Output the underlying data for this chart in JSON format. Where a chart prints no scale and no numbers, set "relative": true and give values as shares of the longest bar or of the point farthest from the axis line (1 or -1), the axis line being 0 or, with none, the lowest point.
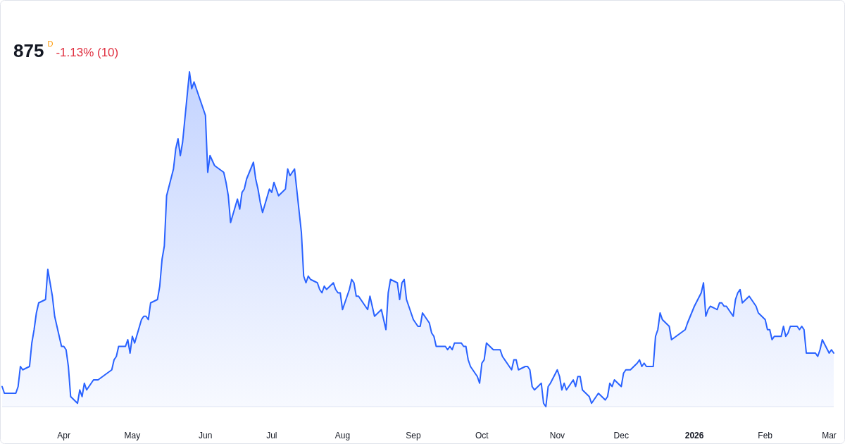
{
  "chart_data": {
    "type": "area",
    "title": "875",
    "subtitle": "-1.13% (10)",
    "annotations": [
      "D"
    ],
    "relative": true,
    "tick_labels": "x",
    "xlim": [
      "2025-03-05",
      "2026-03-04"
    ],
    "xticks": [
      {
        "value": "2025-04-01",
        "label": "Apr"
      },
      {
        "value": "2025-05-01",
        "label": "May"
      },
      {
        "value": "2025-06-02",
        "label": "Jun"
      },
      {
        "value": "2025-07-01",
        "label": "Jul"
      },
      {
        "value": "2025-08-01",
        "label": "Aug"
      },
      {
        "value": "2025-09-01",
        "label": "Sep"
      },
      {
        "value": "2025-10-01",
        "label": "Oct"
      },
      {
        "value": "2025-11-03",
        "label": "Nov"
      },
      {
        "value": "2025-12-01",
        "label": "Dec"
      },
      {
        "value": "2026-01-02",
        "label": "2026"
      },
      {
        "value": "2026-02-02",
        "label": "Feb"
      },
      {
        "value": "2026-03-02",
        "label": "Mar"
      }
    ],
    "x": [
      "2025-03-05",
      "2025-03-06",
      "2025-03-07",
      "2025-03-10",
      "2025-03-11",
      "2025-03-12",
      "2025-03-13",
      "2025-03-14",
      "2025-03-17",
      "2025-03-18",
      "2025-03-19",
      "2025-03-20",
      "2025-03-21",
      "2025-03-24",
      "2025-03-25",
      "2025-03-26",
      "2025-03-27",
      "2025-03-28",
      "2025-03-31",
      "2025-04-01",
      "2025-04-02",
      "2025-04-03",
      "2025-04-04",
      "2025-04-07",
      "2025-04-08",
      "2025-04-09",
      "2025-04-10",
      "2025-04-11",
      "2025-04-14",
      "2025-04-15",
      "2025-04-16",
      "2025-04-22",
      "2025-04-23",
      "2025-04-24",
      "2025-04-25",
      "2025-04-28",
      "2025-04-29",
      "2025-04-30",
      "2025-05-01",
      "2025-05-02",
      "2025-05-05",
      "2025-05-06",
      "2025-05-07",
      "2025-05-08",
      "2025-05-09",
      "2025-05-12",
      "2025-05-13",
      "2025-05-14",
      "2025-05-15",
      "2025-05-16",
      "2025-05-19",
      "2025-05-20",
      "2025-05-21",
      "2025-05-22",
      "2025-05-23",
      "2025-05-26",
      "2025-05-27",
      "2025-05-28",
      "2025-06-02",
      "2025-06-03",
      "2025-06-04",
      "2025-06-06",
      "2025-06-10",
      "2025-06-11",
      "2025-06-12",
      "2025-06-13",
      "2025-06-16",
      "2025-06-17",
      "2025-06-18",
      "2025-06-19",
      "2025-06-20",
      "2025-06-23",
      "2025-06-24",
      "2025-06-25",
      "2025-06-26",
      "2025-06-27",
      "2025-06-30",
      "2025-07-01",
      "2025-07-02",
      "2025-07-03",
      "2025-07-04",
      "2025-07-07",
      "2025-07-08",
      "2025-07-09",
      "2025-07-10",
      "2025-07-11",
      "2025-07-14",
      "2025-07-15",
      "2025-07-16",
      "2025-07-17",
      "2025-07-18",
      "2025-07-21",
      "2025-07-22",
      "2025-07-23",
      "2025-07-24",
      "2025-07-25",
      "2025-07-28",
      "2025-07-29",
      "2025-07-30",
      "2025-07-31",
      "2025-08-01",
      "2025-08-04",
      "2025-08-05",
      "2025-08-06",
      "2025-08-07",
      "2025-08-08",
      "2025-08-11",
      "2025-08-12",
      "2025-08-13",
      "2025-08-14",
      "2025-08-15",
      "2025-08-18",
      "2025-08-19",
      "2025-08-20",
      "2025-08-21",
      "2025-08-22",
      "2025-08-25",
      "2025-08-26",
      "2025-08-27",
      "2025-08-28",
      "2025-08-29",
      "2025-09-01",
      "2025-09-02",
      "2025-09-03",
      "2025-09-04",
      "2025-09-05",
      "2025-09-08",
      "2025-09-09",
      "2025-09-10",
      "2025-09-11",
      "2025-09-12",
      "2025-09-15",
      "2025-09-16",
      "2025-09-17",
      "2025-09-18",
      "2025-09-19",
      "2025-09-22",
      "2025-09-23",
      "2025-09-24",
      "2025-09-25",
      "2025-09-26",
      "2025-09-29",
      "2025-09-30",
      "2025-10-01",
      "2025-10-02",
      "2025-10-03",
      "2025-10-06",
      "2025-10-07",
      "2025-10-08",
      "2025-10-09",
      "2025-10-10",
      "2025-10-13",
      "2025-10-14",
      "2025-10-15",
      "2025-10-16",
      "2025-10-17",
      "2025-10-20",
      "2025-10-21",
      "2025-10-22",
      "2025-10-23",
      "2025-10-24",
      "2025-10-27",
      "2025-10-28",
      "2025-10-29",
      "2025-10-30",
      "2025-10-31",
      "2025-11-03",
      "2025-11-04",
      "2025-11-05",
      "2025-11-06",
      "2025-11-07",
      "2025-11-10",
      "2025-11-11",
      "2025-11-12",
      "2025-11-13",
      "2025-11-14",
      "2025-11-17",
      "2025-11-18",
      "2025-11-19",
      "2025-11-20",
      "2025-11-21",
      "2025-11-24",
      "2025-11-25",
      "2025-11-26",
      "2025-11-27",
      "2025-11-28",
      "2025-12-01",
      "2025-12-02",
      "2025-12-03",
      "2025-12-04",
      "2025-12-05",
      "2025-12-08",
      "2025-12-09",
      "2025-12-10",
      "2025-12-11",
      "2025-12-12",
      "2025-12-15",
      "2025-12-16",
      "2025-12-17",
      "2025-12-18",
      "2025-12-19",
      "2025-12-22",
      "2025-12-23",
      "2025-12-29",
      "2025-12-30",
      "2026-01-02",
      "2026-01-05",
      "2026-01-06",
      "2026-01-07",
      "2026-01-08",
      "2026-01-09",
      "2026-01-12",
      "2026-01-13",
      "2026-01-14",
      "2026-01-15",
      "2026-01-16",
      "2026-01-19",
      "2026-01-20",
      "2026-01-21",
      "2026-01-22",
      "2026-01-23",
      "2026-01-26",
      "2026-01-27",
      "2026-01-28",
      "2026-01-29",
      "2026-01-30",
      "2026-02-02",
      "2026-02-03",
      "2026-02-04",
      "2026-02-05",
      "2026-02-06",
      "2026-02-09",
      "2026-02-10",
      "2026-02-11",
      "2026-02-12",
      "2026-02-13",
      "2026-02-16",
      "2026-02-17",
      "2026-02-18",
      "2026-02-19",
      "2026-02-20",
      "2026-02-23",
      "2026-02-24",
      "2026-02-25",
      "2026-02-26",
      "2026-02-27",
      "2026-03-02",
      "2026-03-03",
      "2026-03-04"
    ],
    "series": [
      {
        "color": "#2962ff",
        "values": [
          0.06,
          0.04,
          0.04,
          0.04,
          0.04,
          0.06,
          0.12,
          0.11,
          0.12,
          0.19,
          0.23,
          0.28,
          0.31,
          0.32,
          0.41,
          0.37,
          0.33,
          0.27,
          0.18,
          0.18,
          0.17,
          0.12,
          0.03,
          0.01,
          0.05,
          0.03,
          0.07,
          0.05,
          0.08,
          0.08,
          0.08,
          0.11,
          0.14,
          0.15,
          0.18,
          0.18,
          0.2,
          0.16,
          0.21,
          0.19,
          0.26,
          0.27,
          0.27,
          0.26,
          0.31,
          0.32,
          0.36,
          0.44,
          0.48,
          0.63,
          0.71,
          0.77,
          0.8,
          0.75,
          0.79,
          1,
          0.95,
          0.97,
          0.87,
          0.7,
          0.75,
          0.72,
          0.7,
          0.67,
          0.63,
          0.55,
          0.62,
          0.59,
          0.64,
          0.65,
          0.68,
          0.73,
          0.68,
          0.65,
          0.61,
          0.58,
          0.65,
          0.64,
          0.67,
          0.65,
          0.63,
          0.65,
          0.71,
          0.69,
          0.7,
          0.71,
          0.52,
          0.39,
          0.37,
          0.39,
          0.38,
          0.37,
          0.35,
          0.34,
          0.36,
          0.35,
          0.37,
          0.35,
          0.34,
          0.34,
          0.29,
          0.35,
          0.38,
          0.37,
          0.33,
          0.33,
          0.3,
          0.29,
          0.33,
          0.3,
          0.27,
          0.29,
          0.26,
          0.23,
          0.34,
          0.38,
          0.37,
          0.32,
          0.37,
          0.38,
          0.32,
          0.26,
          0.25,
          0.24,
          0.24,
          0.28,
          0.25,
          0.22,
          0.21,
          0.18,
          0.18,
          0.18,
          0.17,
          0.18,
          0.17,
          0.19,
          0.19,
          0.18,
          0.18,
          0.14,
          0.12,
          0.09,
          0.07,
          0.13,
          0.14,
          0.19,
          0.17,
          0.17,
          0.17,
          0.17,
          0.15,
          0.12,
          0.11,
          0.14,
          0.14,
          0.11,
          0.12,
          0.12,
          0.11,
          0.06,
          0.05,
          0.07,
          0.01,
          0,
          0.06,
          0.07,
          0.11,
          0.09,
          0.05,
          0.07,
          0.05,
          0.08,
          0.06,
          0.09,
          0.09,
          0.05,
          0.03,
          0.01,
          0.02,
          0.03,
          0.04,
          0.02,
          0.03,
          0.07,
          0.06,
          0.08,
          0.06,
          0.1,
          0.11,
          0.11,
          0.11,
          0.13,
          0.14,
          0.12,
          0.13,
          0.12,
          0.12,
          0.21,
          0.23,
          0.28,
          0.26,
          0.24,
          0.2,
          0.23,
          0.25,
          0.3,
          0.34,
          0.37,
          0.27,
          0.29,
          0.3,
          0.29,
          0.31,
          0.31,
          0.3,
          0.3,
          0.27,
          0.32,
          0.34,
          0.35,
          0.31,
          0.33,
          0.32,
          0.31,
          0.3,
          0.28,
          0.26,
          0.23,
          0.23,
          0.2,
          0.21,
          0.21,
          0.24,
          0.21,
          0.22,
          0.24,
          0.24,
          0.23,
          0.24,
          0.23,
          0.16,
          0.16,
          0.16,
          0.15,
          0.17,
          0.2,
          0.16,
          0.17,
          0.16
        ]
      }
    ]
  }
}
